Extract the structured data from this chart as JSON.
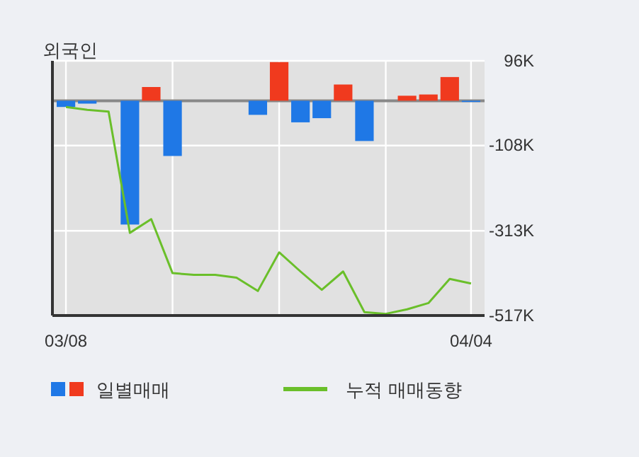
{
  "chart_data": {
    "type": "bar",
    "title": "외국인",
    "categories": [
      "03/08",
      null,
      null,
      null,
      null,
      null,
      null,
      null,
      null,
      null,
      null,
      null,
      null,
      null,
      null,
      null,
      null,
      null,
      null,
      "04/04"
    ],
    "series": [
      {
        "name": "일별매매",
        "colors": [
          "#1f78e6",
          "#1f78e6",
          "#1f78e6",
          "#1f78e6",
          "#f03a1e",
          "#1f78e6",
          "#1f78e6",
          "#1f78e6",
          "#1f78e6",
          "#1f78e6",
          "#f03a1e",
          "#1f78e6",
          "#1f78e6",
          "#f03a1e",
          "#1f78e6",
          "#1f78e6",
          "#f03a1e",
          "#f03a1e",
          "#f03a1e",
          "#1f78e6"
        ],
        "values": [
          -15,
          -7,
          0,
          -298,
          33,
          -133,
          0,
          0,
          0,
          -34,
          93,
          -52,
          -42,
          39,
          -97,
          0,
          12,
          15,
          57,
          -3
        ]
      },
      {
        "name": "누적 매매동향",
        "type": "line",
        "color": "#6abf2a",
        "values": [
          -15,
          -22,
          -26,
          -318,
          -285,
          -415,
          -419,
          -419,
          -426,
          -458,
          -365,
          -411,
          -455,
          -411,
          -509,
          -513,
          -502,
          -487,
          -429,
          -440
        ]
      }
    ],
    "ylim": [
      -517,
      96
    ],
    "yticks": [
      {
        "value": 96,
        "label": "96K"
      },
      {
        "value": -108,
        "label": "-108K"
      },
      {
        "value": -313,
        "label": "-313K"
      },
      {
        "value": -517,
        "label": "-517K"
      }
    ],
    "grid": true,
    "legend": "bottom"
  }
}
